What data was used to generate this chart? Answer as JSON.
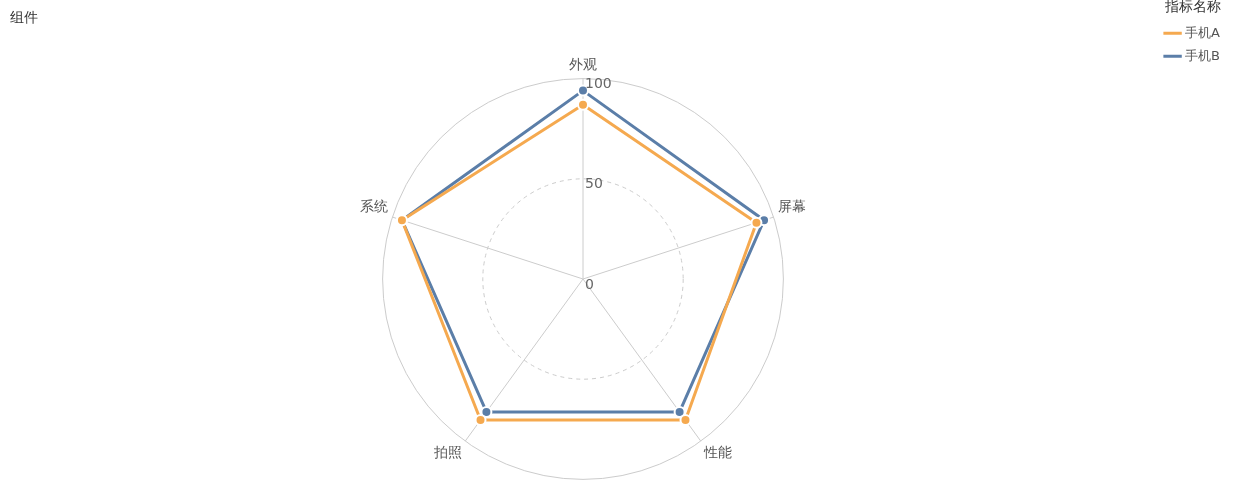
{
  "chart_data": {
    "type": "radar",
    "title": "组件",
    "legend_title": "指标名称",
    "categories": [
      "外观",
      "屏幕",
      "性能",
      "拍照",
      "系统"
    ],
    "series": [
      {
        "name": "手机A",
        "color": "#f5a94f",
        "values": [
          87,
          91,
          87,
          87,
          95
        ]
      },
      {
        "name": "手机B",
        "color": "#5b7ea8",
        "values": [
          94,
          95,
          82,
          82,
          95
        ]
      }
    ],
    "ylim": [
      0,
      100
    ],
    "yticks": [
      0,
      50,
      100
    ],
    "grid": true,
    "legend": "top right",
    "marker": "circle"
  }
}
